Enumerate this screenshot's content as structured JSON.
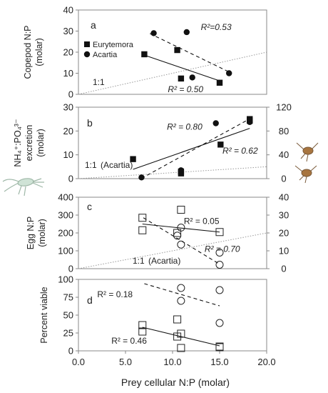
{
  "chart_data": [
    {
      "type": "scatter",
      "panel_label": "a",
      "ylabel_lines": [
        "Copepod N:P",
        "(molar)"
      ],
      "ylim": [
        0,
        40
      ],
      "y_ticks": [
        "0",
        "10",
        "20",
        "30",
        "40"
      ],
      "xlim": [
        0,
        20
      ],
      "legend": [
        "Eurytemora",
        "Acartia"
      ],
      "one_to_one_label": "1:1",
      "series": [
        {
          "name": "Eurytemora",
          "marker": "filled-square",
          "x": [
            7.0,
            10.5,
            10.9,
            15.0
          ],
          "y": [
            19,
            21,
            7.5,
            5.5
          ],
          "fit": {
            "x": [
              7.0,
              15.0
            ],
            "y": [
              18.6,
              6.4
            ],
            "dash": false
          }
        },
        {
          "name": "Acartia",
          "marker": "filled-circle",
          "x": [
            8.0,
            11.5,
            12.1,
            16.0
          ],
          "y": [
            29,
            29.5,
            8,
            10
          ],
          "fit": {
            "x": [
              7.6,
              16.2
            ],
            "y": [
              28.8,
              10.2
            ],
            "dash": true
          }
        }
      ],
      "annotations": [
        {
          "text": "R²=0.53",
          "x": 13.0,
          "y": 30.5,
          "italic": true
        },
        {
          "text": "R² = 0.50",
          "x": 9.5,
          "y": 1.0,
          "italic": true
        }
      ]
    },
    {
      "type": "scatter",
      "panel_label": "b",
      "ylabel_lines": [
        "NH₄⁺:PO₄³⁻",
        "excretion",
        "(molar)"
      ],
      "ylim": [
        0,
        30
      ],
      "y_ticks": [
        "0",
        "10",
        "20",
        "30"
      ],
      "y2lim": [
        0,
        120
      ],
      "y2_ticks": [
        "0",
        "40",
        "80",
        "120"
      ],
      "xlim": [
        0,
        20
      ],
      "one_to_one_label": "1:1",
      "one_to_one_note": "(Acartia)",
      "series": [
        {
          "name": "Eurytemora",
          "marker": "filled-square",
          "axis": "left",
          "x": [
            5.8,
            10.9,
            10.9,
            15.1,
            18.2,
            18.2
          ],
          "y": [
            8.2,
            3.0,
            2.2,
            14.3,
            25.0,
            24.3
          ],
          "fit": {
            "x": [
              5.8,
              18.2
            ],
            "y": [
              3.9,
              21.1
            ],
            "dash": false
          }
        },
        {
          "name": "Acartia",
          "marker": "filled-circle",
          "axis": "right",
          "x": [
            6.7,
            10.9,
            14.6,
            18.2
          ],
          "y": [
            2,
            14,
            93,
            95
          ],
          "fit": {
            "x": [
              6.7,
              18.2
            ],
            "y": [
              0.5,
              100.5
            ],
            "dash": true
          }
        }
      ],
      "annotations": [
        {
          "text": "R² = 0.80",
          "x": 9.4,
          "y": 20.5,
          "italic": true
        },
        {
          "text": "R² = 0.62",
          "x": 15.3,
          "y": 10.5,
          "italic": true
        }
      ]
    },
    {
      "type": "scatter",
      "panel_label": "c",
      "ylabel_lines": [
        "Egg N:P",
        "(molar)"
      ],
      "ylim": [
        0,
        400
      ],
      "y_ticks": [
        "0",
        "100",
        "200",
        "300",
        "400"
      ],
      "y2lim": [
        0,
        40
      ],
      "y2_ticks": [
        "0",
        "10",
        "20",
        "30",
        "40"
      ],
      "xlim": [
        0,
        20
      ],
      "one_to_one_label": "1:1",
      "one_to_one_note": "(Acartia)",
      "series": [
        {
          "name": "Eurytemora",
          "marker": "open-square",
          "axis": "left",
          "x": [
            6.8,
            6.8,
            10.5,
            10.9,
            15.0
          ],
          "y": [
            285,
            215,
            200,
            330,
            205
          ],
          "fit": {
            "x": [
              6.8,
              15.0
            ],
            "y": [
              250,
              205
            ],
            "dash": false
          }
        },
        {
          "name": "Acartia",
          "marker": "open-circle",
          "axis": "right",
          "x": [
            10.5,
            10.9,
            10.9,
            15.0,
            15.0
          ],
          "y": [
            18.5,
            23,
            13.5,
            9,
            2.2
          ],
          "fit": {
            "x": [
              6.9,
              15.0
            ],
            "y": [
              28.5,
              2.5
            ],
            "dash": true
          }
        }
      ],
      "annotations": [
        {
          "text": "R² = 0.05",
          "x": 11.2,
          "y": 250,
          "italic": false
        },
        {
          "text": "R² = 0.70",
          "x": 13.4,
          "y": 95,
          "italic": true
        }
      ]
    },
    {
      "type": "scatter",
      "panel_label": "d",
      "ylabel_lines": [
        "Percent viable"
      ],
      "ylim": [
        0,
        100
      ],
      "y_ticks": [
        "0",
        "25",
        "50",
        "75",
        "100"
      ],
      "xlim": [
        0,
        20
      ],
      "x_ticks": [
        "0.0",
        "5.0",
        "10.0",
        "15.0",
        "20.0"
      ],
      "xlabel": "Prey cellular N:P (molar)",
      "series": [
        {
          "name": "Eurytemora",
          "marker": "open-square",
          "x": [
            6.8,
            6.8,
            10.5,
            10.5,
            10.9,
            10.9,
            15.0,
            15.0
          ],
          "y": [
            36,
            27,
            44,
            20,
            24,
            4,
            5,
            6
          ],
          "fit": {
            "x": [
              6.8,
              15.0
            ],
            "y": [
              33,
              7
            ],
            "dash": false
          }
        },
        {
          "name": "Acartia",
          "marker": "open-circle",
          "x": [
            10.9,
            10.9,
            15.0,
            15.0
          ],
          "y": [
            88,
            70,
            85,
            39
          ],
          "fit": {
            "x": [
              7.0,
              15.0
            ],
            "y": [
              94,
              63
            ],
            "dash": true
          }
        }
      ],
      "annotations": [
        {
          "text": "R² = 0.18",
          "x": 2.0,
          "y": 75,
          "italic": false
        },
        {
          "text": "R² = 0.46",
          "x": 3.5,
          "y": 10,
          "italic": false
        }
      ]
    }
  ]
}
